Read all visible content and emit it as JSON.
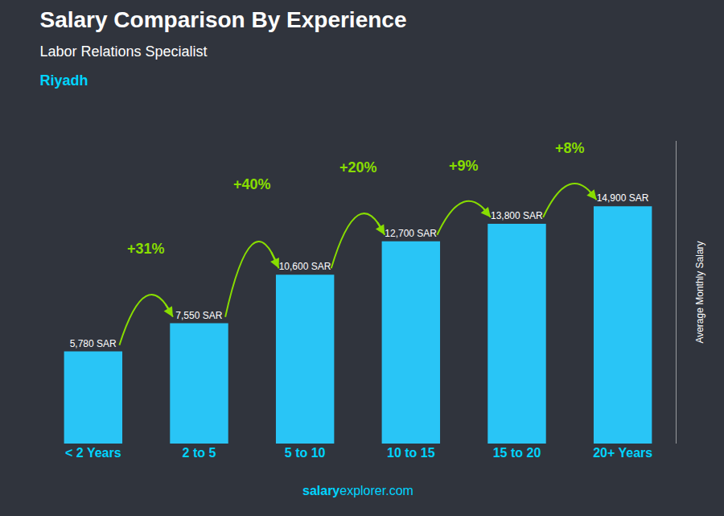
{
  "chart_data": {
    "type": "bar",
    "title": "Salary Comparison By Experience",
    "subtitle": [
      "Labor Relations Specialist",
      "Riyadh"
    ],
    "ylabel": "Average Monthly Salary",
    "footer": [
      "salary",
      "explorer.com"
    ],
    "categories": [
      "< 2 Years",
      "2 to 5",
      "5 to 10",
      "10 to 15",
      "15 to 20",
      "20+ Years"
    ],
    "values": [
      5780,
      7550,
      10600,
      12700,
      13800,
      14900
    ],
    "value_labels": [
      "5,780 SAR",
      "7,550 SAR",
      "10,600 SAR",
      "12,700 SAR",
      "13,800 SAR",
      "14,900 SAR"
    ],
    "data_labels": true,
    "annotations": [
      "+31%",
      "+40%",
      "+20%",
      "+9%",
      "+8%"
    ],
    "color": "#29C5F6",
    "ylim": [
      0,
      19000
    ],
    "tick_labels": "x",
    "grid": false
  }
}
